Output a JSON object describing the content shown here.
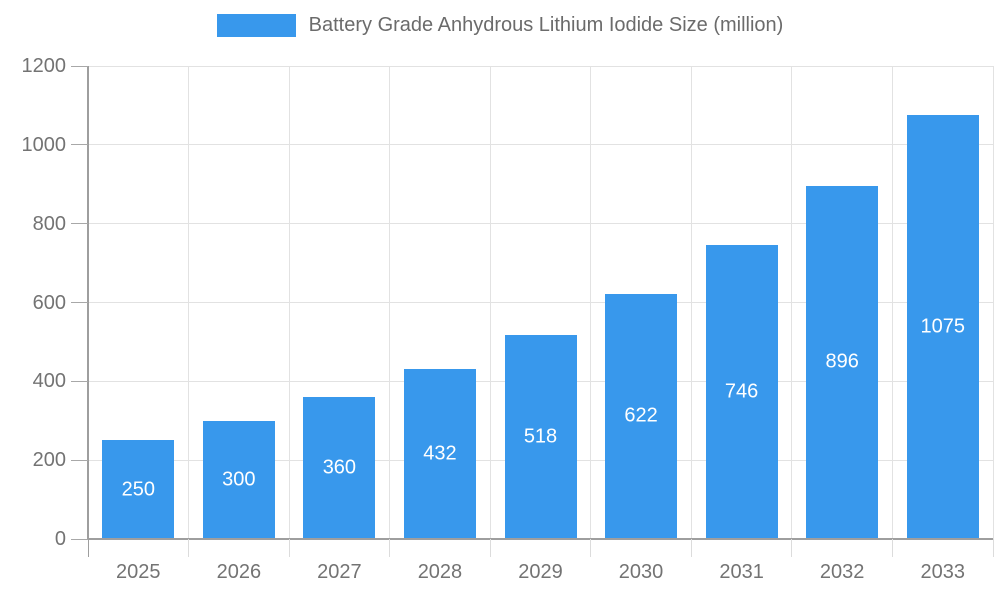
{
  "legend": {
    "series_label": "Battery Grade Anhydrous Lithium Iodide Size (million)"
  },
  "chart_data": {
    "type": "bar",
    "title": "Battery Grade Anhydrous Lithium Iodide Size (million)",
    "categories": [
      "2025",
      "2026",
      "2027",
      "2028",
      "2029",
      "2030",
      "2031",
      "2032",
      "2033"
    ],
    "series": [
      {
        "name": "Battery Grade Anhydrous Lithium Iodide Size (million)",
        "values": [
          250,
          300,
          360,
          432,
          518,
          622,
          746,
          896,
          1075
        ]
      }
    ],
    "value_labels_shown": true,
    "xlabel": "",
    "ylabel": "",
    "ylim": [
      0,
      1200
    ],
    "y_ticks": [
      0,
      200,
      400,
      600,
      800,
      1000,
      1200
    ],
    "grid": true,
    "legend_position": "top-center",
    "colors": {
      "bar": "#3898EC",
      "grid_line": "#e2e2e2",
      "axis_line": "#9e9e9e",
      "y_tick": "#a8a8a8",
      "x_tick": "#dcdcdc",
      "axis_text": "#737373",
      "legend_text": "#6b6b6b",
      "bar_label_text": "#ffffff",
      "background": "#ffffff"
    }
  }
}
